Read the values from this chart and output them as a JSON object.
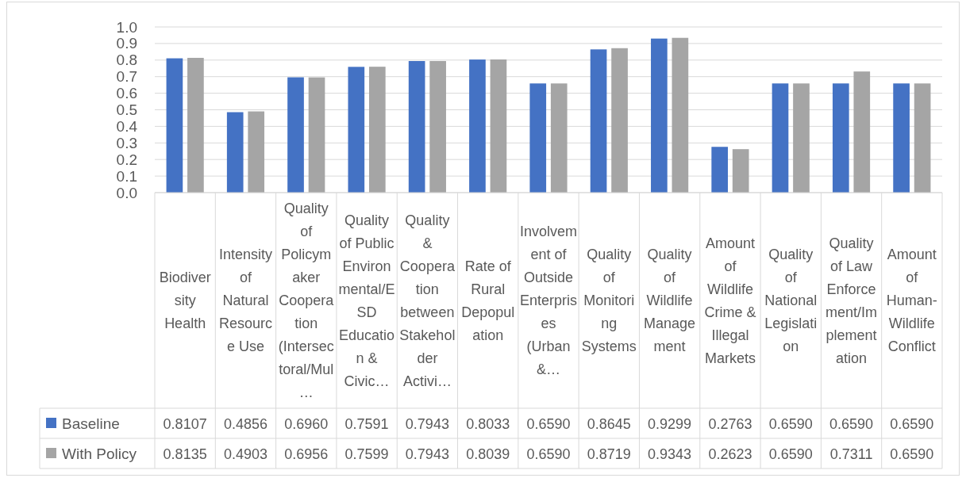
{
  "chart_data": {
    "type": "bar",
    "categories": [
      "Biodiversity Health",
      "Intensity of Natural Resource Use",
      "Quality of Policymaker Cooperation (Intersectoral/Mul…",
      "Quality of Public Environmental/ESD Education & Civic…",
      "Quality & Cooperation between Stakeholder Activi…",
      "Rate of Rural Depopulation",
      "Involvement of Outside Enterprises (Urban &…",
      "Quality of Monitoring Systems",
      "Quality of Wildlife Management",
      "Amount of Wildlife Crime & Illegal Markets",
      "Quality of National Legislation",
      "Quality of Law Enforcement/Implementation",
      "Amount of Human-Wildlife Conflict"
    ],
    "series": [
      {
        "name": "Baseline",
        "color": "#4472c4",
        "values": [
          0.8107,
          0.4856,
          0.696,
          0.7591,
          0.7943,
          0.8033,
          0.659,
          0.8645,
          0.9299,
          0.2763,
          0.659,
          0.659,
          0.659
        ],
        "value_labels": [
          "0.8107",
          "0.4856",
          "0.6960",
          "0.7591",
          "0.7943",
          "0.8033",
          "0.6590",
          "0.8645",
          "0.9299",
          "0.2763",
          "0.6590",
          "0.6590",
          "0.6590"
        ]
      },
      {
        "name": "With Policy",
        "color": "#a5a5a5",
        "values": [
          0.8135,
          0.4903,
          0.6956,
          0.7599,
          0.7943,
          0.8039,
          0.659,
          0.8719,
          0.9343,
          0.2623,
          0.659,
          0.7311,
          0.659
        ],
        "value_labels": [
          "0.8135",
          "0.4903",
          "0.6956",
          "0.7599",
          "0.7943",
          "0.8039",
          "0.6590",
          "0.8719",
          "0.9343",
          "0.2623",
          "0.6590",
          "0.7311",
          "0.6590"
        ]
      }
    ],
    "ylim": [
      0,
      1.0
    ],
    "yticks": [
      {
        "value": 0,
        "label": "0.0"
      },
      {
        "value": 0.1,
        "label": "0.1"
      },
      {
        "value": 0.2,
        "label": "0.2"
      },
      {
        "value": 0.3,
        "label": "0.3"
      },
      {
        "value": 0.4,
        "label": "0.4"
      },
      {
        "value": 0.5,
        "label": "0.5"
      },
      {
        "value": 0.6,
        "label": "0.6"
      },
      {
        "value": 0.7,
        "label": "0.7"
      },
      {
        "value": 0.8,
        "label": "0.8"
      },
      {
        "value": 0.9,
        "label": "0.9"
      },
      {
        "value": 1.0,
        "label": "1.0"
      }
    ],
    "grid": "y",
    "legend": "bottom"
  }
}
